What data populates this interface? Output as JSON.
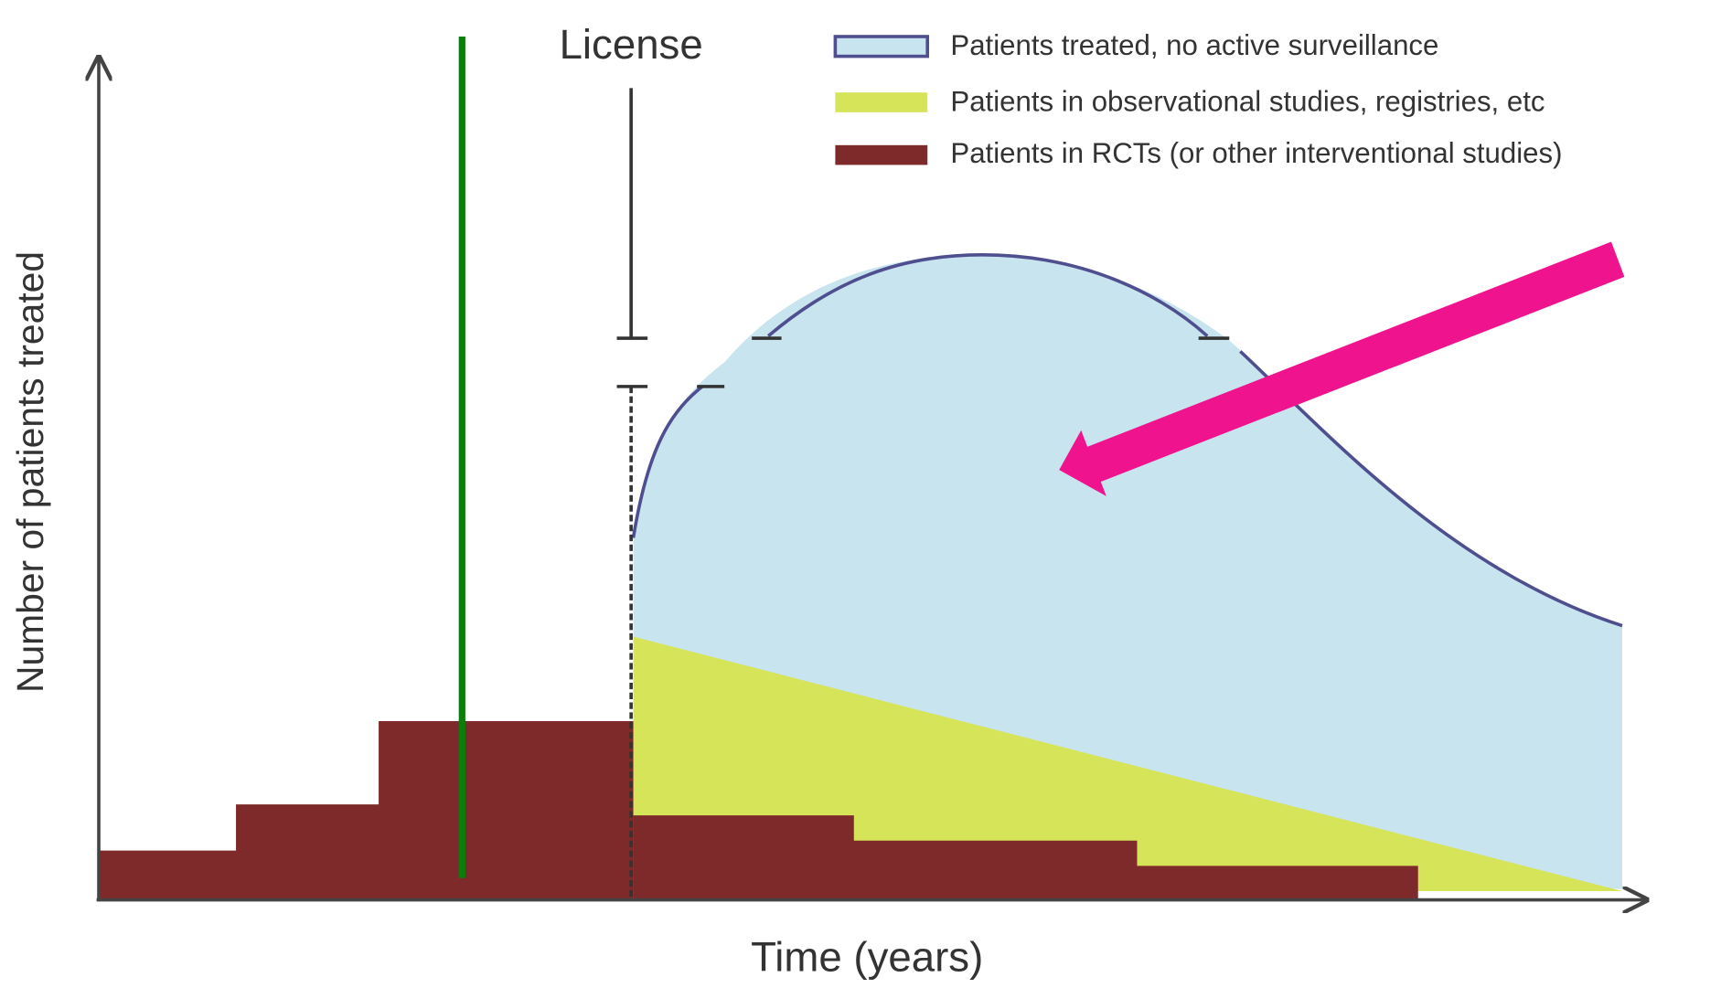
{
  "annotations": {
    "license": "License"
  },
  "legend": {
    "items": [
      {
        "label": "Patients treated, no active surveillance"
      },
      {
        "label": "Patients in observational studies, registries, etc"
      },
      {
        "label": "Patients in RCTs (or other interventional studies)"
      }
    ]
  },
  "axes": {
    "x_label": "Time (years)",
    "y_label": "Number of patients treated"
  }
}
